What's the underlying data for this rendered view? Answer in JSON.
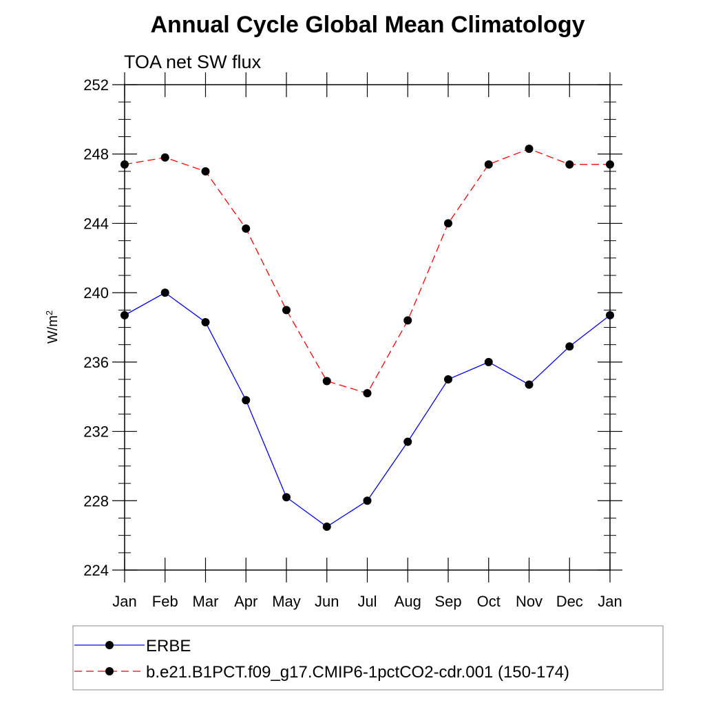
{
  "chart_data": {
    "type": "line",
    "title": "Annual Cycle Global Mean Climatology",
    "subtitle": "TOA net SW flux",
    "ylabel_base": "W/m",
    "ylabel_sup": "2",
    "xlabel": "",
    "categories": [
      "Jan",
      "Feb",
      "Mar",
      "Apr",
      "May",
      "Jun",
      "Jul",
      "Aug",
      "Sep",
      "Oct",
      "Nov",
      "Dec",
      "Jan"
    ],
    "ylim": [
      224,
      252
    ],
    "yticks": [
      224,
      228,
      232,
      236,
      240,
      244,
      248,
      252
    ],
    "yminor_step": 1,
    "grid": false,
    "legend_position": "bottom",
    "series": [
      {
        "name": "ERBE",
        "color": "#0000ff",
        "dash": "solid",
        "values": [
          238.7,
          240.0,
          238.3,
          233.8,
          228.2,
          226.5,
          228.0,
          231.4,
          235.0,
          236.0,
          234.7,
          236.9,
          238.7
        ]
      },
      {
        "name": "b.e21.B1PCT.f09_g17.CMIP6-1pctCO2-cdr.001 (150-174)",
        "color": "#ff0000",
        "dash": "dashed",
        "values": [
          247.4,
          247.8,
          247.0,
          243.7,
          239.0,
          234.9,
          234.2,
          238.4,
          244.0,
          247.4,
          248.3,
          247.4,
          247.4
        ]
      }
    ],
    "marker_color": "#000000"
  }
}
